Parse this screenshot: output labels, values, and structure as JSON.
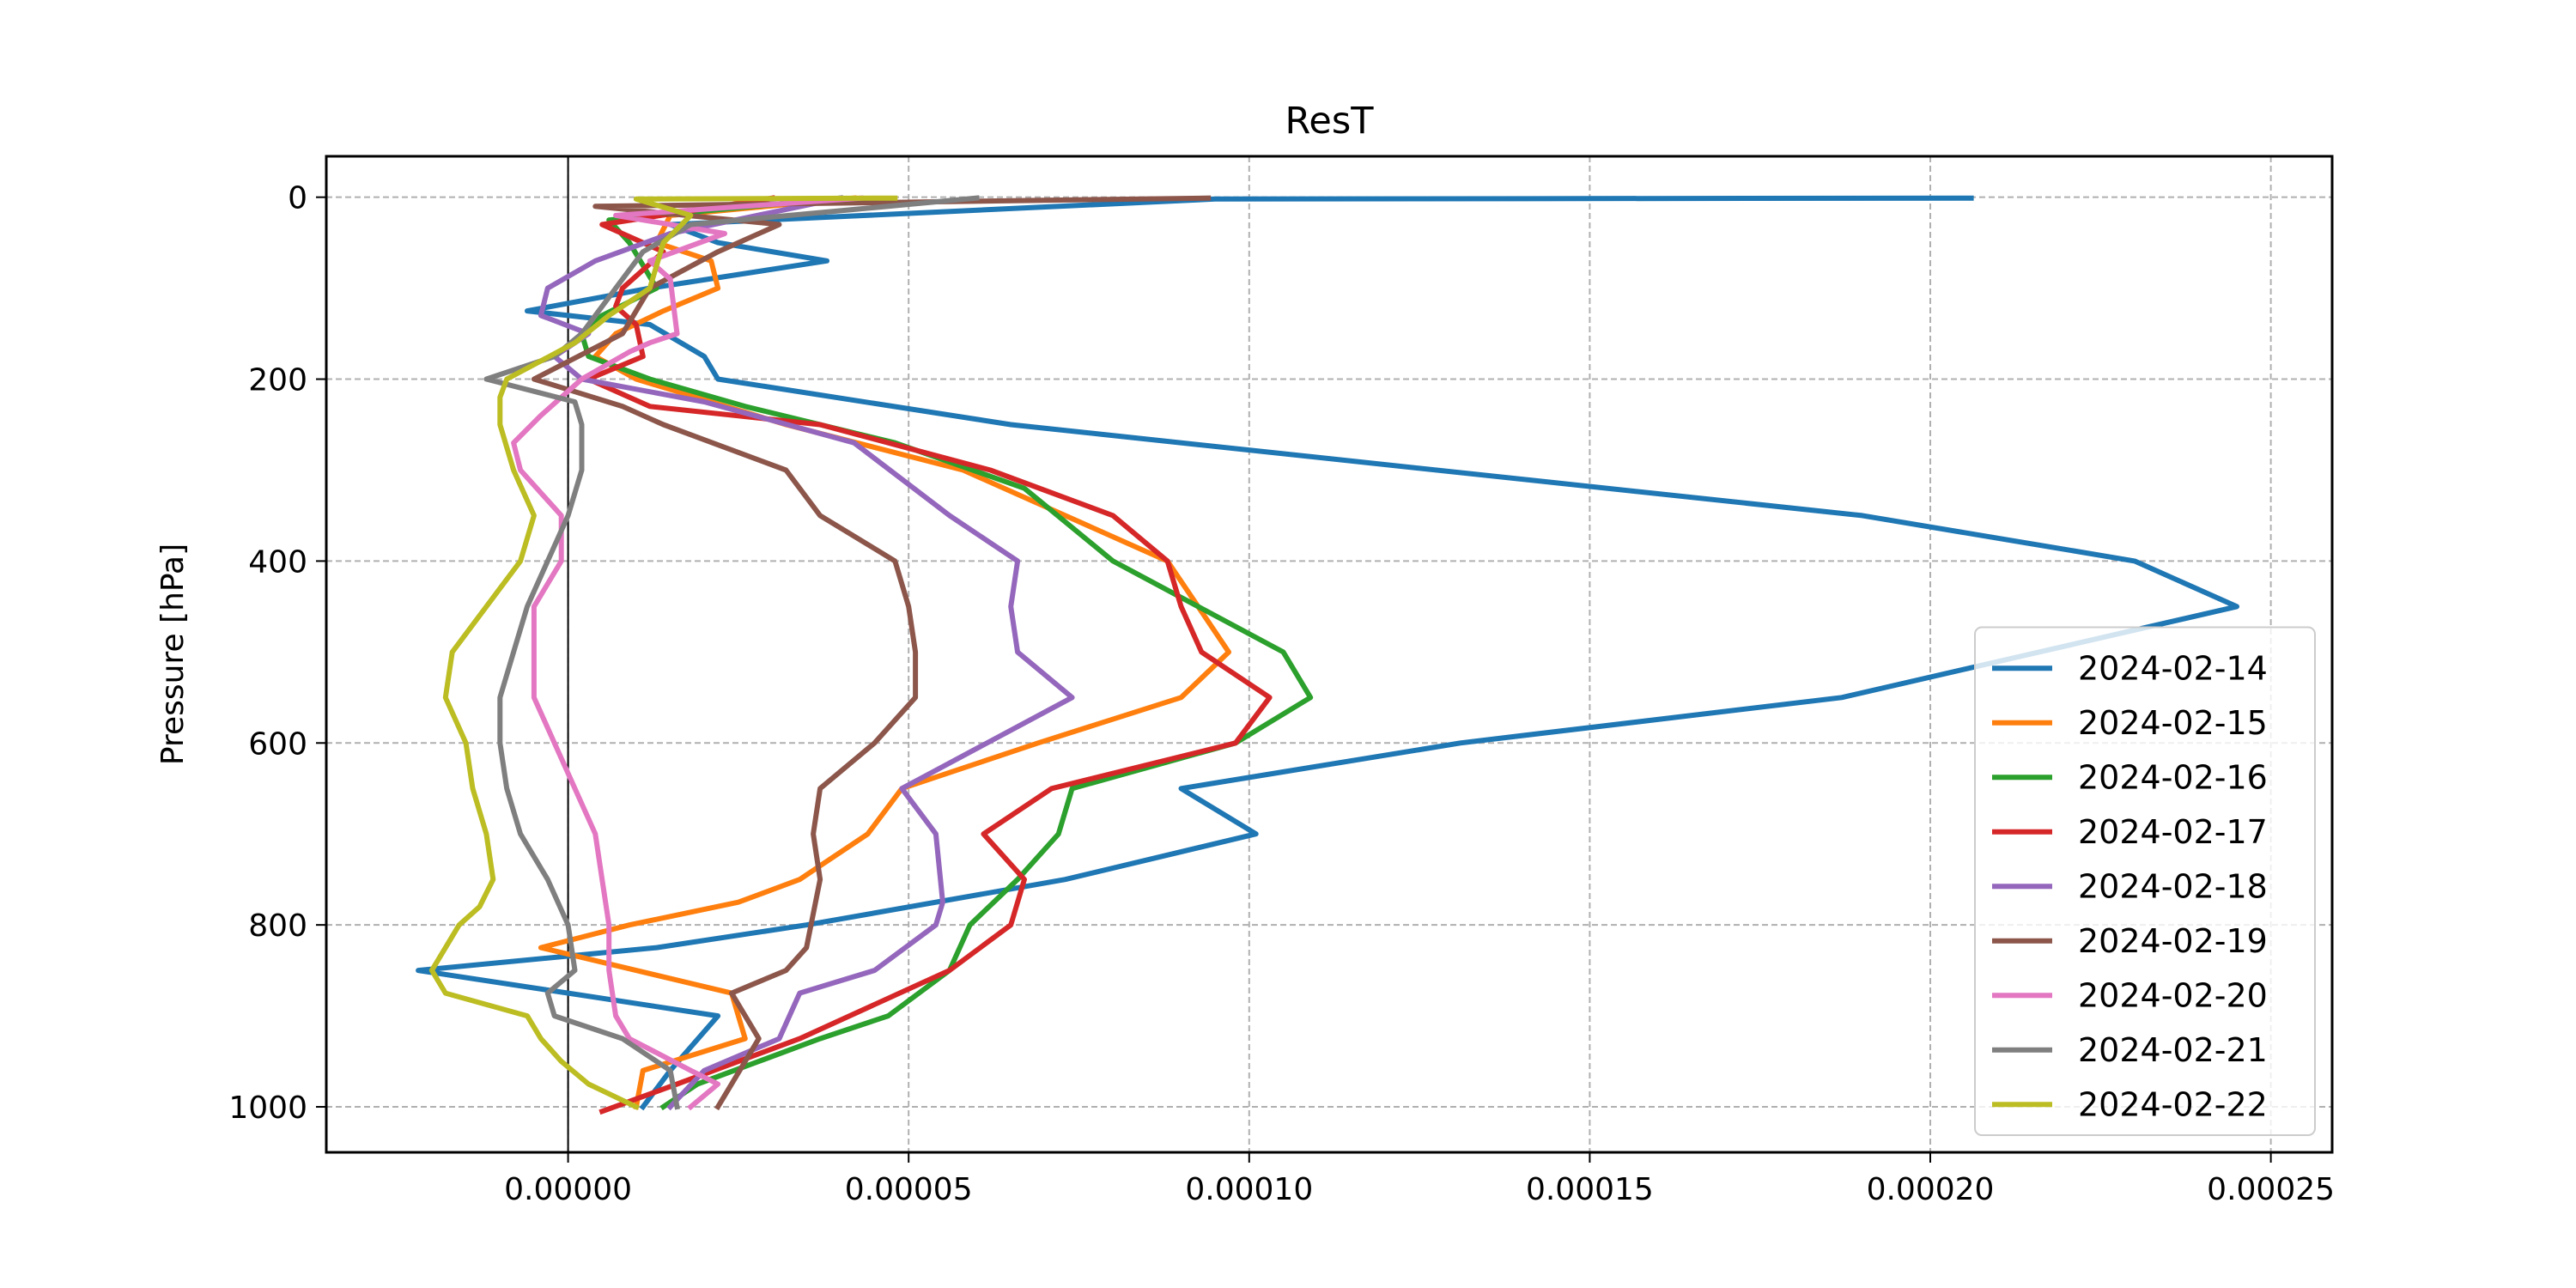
{
  "chart_data": {
    "type": "line",
    "title": "ResT",
    "xlabel": "",
    "ylabel": "Pressure [hPa]",
    "xlim": [
      -3.55e-05,
      0.000259
    ],
    "ylim": [
      1050,
      -45
    ],
    "x_ticks": [
      0.0,
      5e-05,
      0.0001,
      0.00015,
      0.0002,
      0.00025
    ],
    "x_tick_labels": [
      "0.00000",
      "0.00005",
      "0.00010",
      "0.00015",
      "0.00020",
      "0.00025"
    ],
    "y_ticks": [
      0,
      200,
      400,
      600,
      800,
      1000
    ],
    "y_tick_labels": [
      "0",
      "200",
      "400",
      "600",
      "800",
      "1000"
    ],
    "grid": true,
    "zero_line": true,
    "legend_position": "lower right",
    "series": [
      {
        "name": "2024-02-14",
        "color": "#1f77b4",
        "x": [
          0.000206,
          9.5e-05,
          1.5e-05,
          2.2e-05,
          3.8e-05,
          1.2e-05,
          -6e-06,
          1.2e-05,
          2e-05,
          2.2e-05,
          6.5e-05,
          0.00019,
          0.00023,
          0.000245,
          0.000187,
          0.000131,
          9e-05,
          0.000101,
          7.3e-05,
          3.5e-05,
          1.3e-05,
          -2.2e-05,
          2.2e-05,
          1.5e-05,
          1.1e-05
        ],
        "y": [
          1,
          2,
          30,
          50,
          70,
          100,
          125,
          140,
          175,
          200,
          250,
          350,
          400,
          450,
          550,
          600,
          650,
          700,
          750,
          800,
          825,
          850,
          900,
          960,
          1000
        ]
      },
      {
        "name": "2024-02-15",
        "color": "#ff7f0e",
        "x": [
          4.2e-05,
          1.5e-05,
          1.3e-05,
          2.1e-05,
          2.2e-05,
          1.4e-05,
          7e-06,
          4e-06,
          1e-05,
          3.2e-05,
          5.8e-05,
          8.8e-05,
          9.7e-05,
          9e-05,
          6.9e-05,
          4.9e-05,
          4.4e-05,
          3.4e-05,
          2.5e-05,
          9e-06,
          -4e-06,
          2.4e-05,
          2.6e-05,
          1.1e-05,
          1e-05
        ],
        "y": [
          1,
          20,
          50,
          70,
          100,
          125,
          150,
          175,
          200,
          250,
          300,
          400,
          500,
          550,
          600,
          650,
          700,
          750,
          775,
          800,
          825,
          875,
          925,
          960,
          1000
        ]
      },
      {
        "name": "2024-02-16",
        "color": "#2ca02c",
        "x": [
          4e-05,
          6e-06,
          9e-06,
          1.3e-05,
          5e-06,
          2e-06,
          3e-06,
          1.2e-05,
          2.6e-05,
          4.8e-05,
          6.7e-05,
          8e-05,
          0.000105,
          0.000109,
          9.8e-05,
          7.4e-05,
          7.2e-05,
          6.6e-05,
          5.9e-05,
          5.6e-05,
          4.7e-05,
          3.7e-05,
          2.8e-05,
          1.9e-05,
          1.4e-05
        ],
        "y": [
          1,
          25,
          50,
          100,
          130,
          150,
          175,
          200,
          230,
          270,
          320,
          400,
          500,
          550,
          600,
          650,
          700,
          750,
          800,
          850,
          900,
          925,
          950,
          975,
          1000
        ]
      },
      {
        "name": "2024-02-17",
        "color": "#d62728",
        "x": [
          3e-05,
          5e-06,
          1.4e-05,
          8e-06,
          7e-06,
          1e-05,
          1.1e-05,
          3e-06,
          1.2e-05,
          3.7e-05,
          6.2e-05,
          8e-05,
          8.8e-05,
          9e-05,
          9.3e-05,
          0.000103,
          9.8e-05,
          7.1e-05,
          6.1e-05,
          6.7e-05,
          6.5e-05,
          5.6e-05,
          3.4e-05,
          1.6e-05,
          5e-06
        ],
        "y": [
          1,
          30,
          60,
          100,
          120,
          140,
          175,
          200,
          230,
          250,
          300,
          350,
          400,
          450,
          500,
          550,
          600,
          650,
          700,
          750,
          800,
          850,
          925,
          975,
          1005
        ]
      },
      {
        "name": "2024-02-18",
        "color": "#9467bd",
        "x": [
          4e-05,
          1.5e-05,
          4e-06,
          -3e-06,
          -4e-06,
          3e-06,
          -2e-06,
          2e-06,
          2e-05,
          4.2e-05,
          5.6e-05,
          6.6e-05,
          6.5e-05,
          6.6e-05,
          7.4e-05,
          4.9e-05,
          5.4e-05,
          5.5e-05,
          5.4e-05,
          4.5e-05,
          3.4e-05,
          3.1e-05,
          2e-05,
          1.5e-05
        ],
        "y": [
          1,
          40,
          70,
          100,
          130,
          150,
          175,
          200,
          225,
          270,
          350,
          400,
          450,
          500,
          550,
          650,
          700,
          775,
          800,
          850,
          875,
          925,
          960,
          1000
        ]
      },
      {
        "name": "2024-02-19",
        "color": "#8c564b",
        "x": [
          9.4e-05,
          4e-06,
          3.1e-05,
          2.2e-05,
          1.2e-05,
          8e-06,
          -5e-06,
          8e-06,
          1.4e-05,
          3.2e-05,
          3.7e-05,
          4.8e-05,
          5e-05,
          5.1e-05,
          5.1e-05,
          4.5e-05,
          3.7e-05,
          3.6e-05,
          3.7e-05,
          3.5e-05,
          3.2e-05,
          2.4e-05,
          2.8e-05,
          2.2e-05
        ],
        "y": [
          1,
          10,
          30,
          60,
          100,
          150,
          200,
          230,
          250,
          300,
          350,
          400,
          450,
          500,
          550,
          600,
          650,
          700,
          750,
          825,
          850,
          875,
          925,
          1000
        ]
      },
      {
        "name": "2024-02-20",
        "color": "#e377c2",
        "x": [
          4.3e-05,
          7e-06,
          2.3e-05,
          1.2e-05,
          1.5e-05,
          1.6e-05,
          1.2e-05,
          9e-06,
          2e-06,
          -4e-06,
          -8e-06,
          -7e-06,
          -1e-06,
          -1e-06,
          -5e-06,
          -5e-06,
          -2e-06,
          4e-06,
          5e-06,
          6e-06,
          6e-06,
          7e-06,
          9e-06,
          1.8e-05,
          2.2e-05,
          1.8e-05
        ],
        "y": [
          1,
          20,
          40,
          70,
          90,
          150,
          160,
          170,
          200,
          240,
          270,
          300,
          350,
          400,
          450,
          550,
          600,
          700,
          750,
          800,
          850,
          900,
          925,
          960,
          975,
          1000
        ]
      },
      {
        "name": "2024-02-21",
        "color": "#7f7f7f",
        "x": [
          6e-05,
          1.8e-05,
          1.1e-05,
          7e-06,
          2e-06,
          -2e-06,
          -1.2e-05,
          1e-06,
          2e-06,
          2e-06,
          0.0,
          -3e-06,
          -6e-06,
          -8e-06,
          -1e-05,
          -1e-05,
          -9e-06,
          -7e-06,
          -3e-06,
          0.0,
          1e-06,
          -3e-06,
          -2e-06,
          8e-06,
          1.5e-05,
          1.6e-05
        ],
        "y": [
          1,
          30,
          60,
          100,
          150,
          175,
          200,
          225,
          250,
          300,
          350,
          400,
          450,
          500,
          550,
          600,
          650,
          700,
          750,
          800,
          850,
          875,
          900,
          925,
          960,
          1000
        ]
      },
      {
        "name": "2024-02-22",
        "color": "#bcbd22",
        "x": [
          4.8e-05,
          1e-05,
          1.8e-05,
          1.4e-05,
          1.2e-05,
          6e-06,
          1e-06,
          -9e-06,
          -1e-05,
          -1e-05,
          -8e-06,
          -5e-06,
          -7e-06,
          -1.2e-05,
          -1.7e-05,
          -1.8e-05,
          -1.5e-05,
          -1.4e-05,
          -1.2e-05,
          -1.1e-05,
          -1.3e-05,
          -1.6e-05,
          -2e-05,
          -1.8e-05,
          -6e-06,
          -4e-06,
          -1e-06,
          3e-06,
          1e-05
        ],
        "y": [
          1,
          2,
          20,
          50,
          100,
          130,
          160,
          200,
          220,
          250,
          300,
          350,
          400,
          450,
          500,
          550,
          600,
          650,
          700,
          750,
          780,
          800,
          850,
          875,
          900,
          925,
          950,
          975,
          1000
        ]
      }
    ]
  }
}
